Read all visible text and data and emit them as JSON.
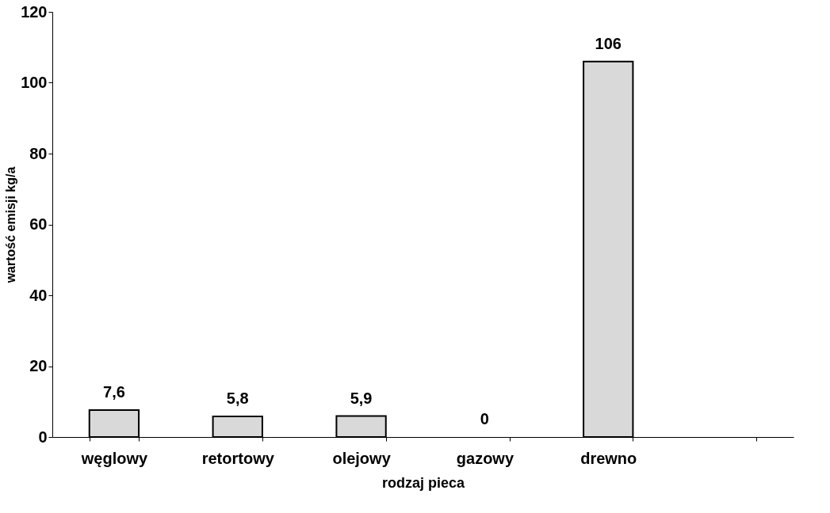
{
  "chart_data": {
    "type": "bar",
    "xlabel": "rodzaj pieca",
    "ylabel": "wartość emisji kg/a",
    "categories": [
      "węglowy",
      "retortowy",
      "olejowy",
      "gazowy",
      "drewno",
      null
    ],
    "values": [
      7.6,
      5.8,
      5.9,
      0,
      106,
      null
    ],
    "value_labels": [
      "7,6",
      "5,8",
      "5,9",
      "0",
      "106",
      null
    ],
    "color": "#d9d9d9",
    "ylim": [
      0,
      120
    ],
    "yticks": [
      0,
      20,
      40,
      60,
      80,
      100,
      120
    ],
    "grid": false
  }
}
